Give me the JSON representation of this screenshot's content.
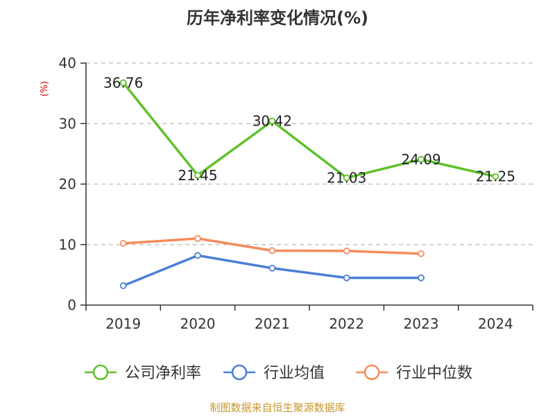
{
  "chart_data": {
    "type": "line",
    "title": "历年净利率变化情况(%)",
    "ylabel": "(%)",
    "ylim": [
      0,
      40
    ],
    "yticks": [
      0,
      10,
      20,
      30,
      40
    ],
    "categories": [
      "2019",
      "2020",
      "2021",
      "2022",
      "2023",
      "2024"
    ],
    "series": [
      {
        "name": "公司净利率",
        "color": "#5dc12a",
        "values": [
          36.76,
          21.45,
          30.42,
          21.03,
          24.09,
          21.25
        ],
        "labels": [
          "36.76",
          "21.45",
          "30.42",
          "21.03",
          "24.09",
          "21.25"
        ]
      },
      {
        "name": "行业均值",
        "color": "#4a7fd6",
        "values": [
          3.2,
          8.2,
          6.1,
          4.5,
          4.5,
          null
        ]
      },
      {
        "name": "行业中位数",
        "color": "#f58b5c",
        "values": [
          10.2,
          11.0,
          9.0,
          8.95,
          8.5,
          null
        ]
      }
    ],
    "grid": true,
    "legend": "bottom"
  },
  "source": "制图数据来自恒生聚源数据库",
  "colors": {
    "ylabel": "#cc0000",
    "source": "#c8962a",
    "axis": "#333333",
    "grid": "#bbbbbb"
  }
}
